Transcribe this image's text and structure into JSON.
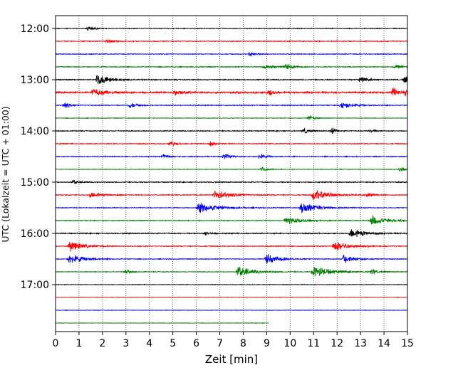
{
  "chart_data": {
    "type": "line",
    "title": "",
    "xlabel": "Zeit  [min]",
    "ylabel": "UTC (Lokalzeit = UTC + 01:00)",
    "xlim": [
      0,
      15
    ],
    "xticks": [
      0,
      1,
      2,
      3,
      4,
      5,
      6,
      7,
      8,
      9,
      10,
      11,
      12,
      13,
      14,
      15
    ],
    "xtick_labels": [
      "0",
      "1",
      "2",
      "3",
      "4",
      "5",
      "6",
      "7",
      "8",
      "9",
      "10",
      "11",
      "12",
      "13",
      "14",
      "15"
    ],
    "yticks": [
      {
        "label": "12:00",
        "trace": 0
      },
      {
        "label": "13:00",
        "trace": 4
      },
      {
        "label": "14:00",
        "trace": 8
      },
      {
        "label": "15:00",
        "trace": 12
      },
      {
        "label": "16:00",
        "trace": 16
      },
      {
        "label": "17:00",
        "trace": 20
      }
    ],
    "grid": "vertical dotted",
    "colors": [
      "#000000",
      "#ff0000",
      "#0000ff",
      "#008000"
    ],
    "traces": [
      {
        "start": "12:00",
        "color": "#000000",
        "end": 15,
        "noise": 0.25,
        "events": [
          [
            1.4,
            1.0,
            0.2
          ]
        ]
      },
      {
        "start": "12:15",
        "color": "#ff0000",
        "end": 15,
        "noise": 0.3,
        "events": [
          [
            2.2,
            0.9,
            0.2
          ]
        ]
      },
      {
        "start": "12:30",
        "color": "#0000ff",
        "end": 15,
        "noise": 0.25,
        "events": [
          [
            8.3,
            0.8,
            0.2
          ]
        ]
      },
      {
        "start": "12:45",
        "color": "#008000",
        "end": 15,
        "noise": 0.3,
        "events": [
          [
            8.9,
            1.0,
            0.4
          ],
          [
            9.8,
            1.1,
            0.3
          ],
          [
            14.5,
            0.9,
            0.2
          ]
        ]
      },
      {
        "start": "13:00",
        "color": "#000000",
        "end": 15,
        "noise": 0.35,
        "events": [
          [
            1.8,
            2.2,
            0.5
          ],
          [
            13.0,
            1.0,
            0.3
          ],
          [
            14.9,
            1.4,
            0.3
          ]
        ]
      },
      {
        "start": "13:15",
        "color": "#ff0000",
        "end": 15,
        "noise": 0.55,
        "events": [
          [
            1.6,
            1.2,
            0.6
          ],
          [
            5.1,
            1.0,
            0.3
          ],
          [
            9.1,
            1.1,
            0.2
          ],
          [
            14.4,
            1.9,
            0.2
          ],
          [
            14.9,
            1.4,
            0.2
          ]
        ]
      },
      {
        "start": "13:30",
        "color": "#0000ff",
        "end": 15,
        "noise": 0.3,
        "events": [
          [
            0.4,
            1.2,
            0.2
          ],
          [
            3.2,
            1.1,
            0.2
          ],
          [
            12.2,
            1.4,
            0.4
          ]
        ]
      },
      {
        "start": "13:45",
        "color": "#008000",
        "end": 15,
        "noise": 0.2,
        "events": [
          [
            10.8,
            0.9,
            0.2
          ]
        ]
      },
      {
        "start": "14:00",
        "color": "#000000",
        "end": 15,
        "noise": 0.3,
        "events": [
          [
            10.6,
            1.2,
            0.15
          ],
          [
            11.8,
            1.2,
            0.15
          ],
          [
            13.4,
            0.8,
            0.15
          ]
        ]
      },
      {
        "start": "14:15",
        "color": "#ff0000",
        "end": 15,
        "noise": 0.3,
        "events": [
          [
            4.9,
            1.0,
            0.2
          ],
          [
            6.6,
            0.9,
            0.2
          ]
        ]
      },
      {
        "start": "14:30",
        "color": "#0000ff",
        "end": 15,
        "noise": 0.3,
        "events": [
          [
            4.6,
            0.8,
            0.2
          ],
          [
            7.2,
            1.1,
            0.2
          ],
          [
            8.7,
            1.1,
            0.2
          ]
        ]
      },
      {
        "start": "14:45",
        "color": "#008000",
        "end": 15,
        "noise": 0.2,
        "events": [
          [
            8.8,
            0.8,
            0.2
          ],
          [
            14.7,
            0.9,
            0.2
          ]
        ]
      },
      {
        "start": "15:00",
        "color": "#000000",
        "end": 15,
        "noise": 0.3,
        "events": [
          [
            0.8,
            0.8,
            0.2
          ]
        ]
      },
      {
        "start": "15:15",
        "color": "#ff0000",
        "end": 15,
        "noise": 0.3,
        "events": [
          [
            1.5,
            1.2,
            0.4
          ],
          [
            6.8,
            1.8,
            0.6
          ],
          [
            11.0,
            2.2,
            0.6
          ],
          [
            13.3,
            0.8,
            0.2
          ]
        ]
      },
      {
        "start": "15:30",
        "color": "#0000ff",
        "end": 15,
        "noise": 0.25,
        "events": [
          [
            6.1,
            2.0,
            0.7
          ],
          [
            10.5,
            2.1,
            0.6
          ]
        ]
      },
      {
        "start": "15:45",
        "color": "#008000",
        "end": 15,
        "noise": 0.3,
        "events": [
          [
            9.8,
            1.4,
            0.6
          ],
          [
            13.5,
            2.0,
            0.5
          ]
        ]
      },
      {
        "start": "16:00",
        "color": "#000000",
        "end": 15,
        "noise": 0.35,
        "events": [
          [
            12.6,
            1.9,
            0.5
          ],
          [
            6.4,
            0.8,
            0.2
          ]
        ]
      },
      {
        "start": "16:15",
        "color": "#ff0000",
        "end": 15,
        "noise": 0.3,
        "events": [
          [
            0.6,
            2.0,
            0.5
          ],
          [
            11.9,
            1.9,
            0.5
          ]
        ]
      },
      {
        "start": "16:30",
        "color": "#0000ff",
        "end": 15,
        "noise": 0.25,
        "events": [
          [
            0.6,
            2.0,
            0.5
          ],
          [
            9.0,
            1.9,
            0.5
          ],
          [
            12.3,
            1.7,
            0.4
          ]
        ]
      },
      {
        "start": "16:45",
        "color": "#008000",
        "end": 15,
        "noise": 0.25,
        "events": [
          [
            3.0,
            1.0,
            0.2
          ],
          [
            7.8,
            2.0,
            0.6
          ],
          [
            11.0,
            2.2,
            0.7
          ],
          [
            13.5,
            1.0,
            0.2
          ]
        ]
      },
      {
        "start": "17:00",
        "color": "#000000",
        "end": 15,
        "noise": 0.2,
        "events": []
      },
      {
        "start": "17:15",
        "color": "#ff0000",
        "end": 15,
        "noise": 0.15,
        "events": []
      },
      {
        "start": "17:30",
        "color": "#0000ff",
        "end": 15,
        "noise": 0.15,
        "events": []
      },
      {
        "start": "17:45",
        "color": "#008000",
        "end": 9.1,
        "noise": 0.15,
        "events": []
      }
    ]
  }
}
